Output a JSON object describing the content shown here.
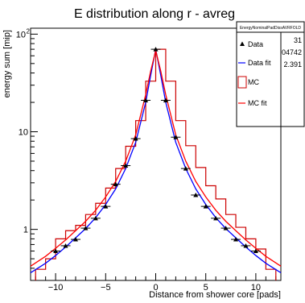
{
  "chart_data": {
    "type": "line",
    "title": "E distribution along r - avreg",
    "xlabel": "Distance from shower core [pads]",
    "ylabel": "energy sum [mip]",
    "xlim": [
      -12.5,
      12.5
    ],
    "ylim": [
      0.3,
      115
    ],
    "y_scale": "log",
    "x_ticks": [
      -10,
      -5,
      0,
      5,
      10
    ],
    "y_ticks": [
      {
        "v": 1,
        "label": "1"
      },
      {
        "v": 10,
        "label": "10"
      },
      {
        "v": 100,
        "label": "10",
        "exp": "2"
      }
    ],
    "grid": false,
    "legend_position": "top-right",
    "stats_box": {
      "title": "EnergyNominalPadDissAVRFOLD",
      "values": [
        "31",
        ".04742",
        "2.391"
      ]
    },
    "legend": [
      {
        "label": "Data",
        "marker": "triangle",
        "color": "#000000"
      },
      {
        "label": "Data fit",
        "marker": "line",
        "color": "#0000ff"
      },
      {
        "label": "MC",
        "marker": "box",
        "color": "#cc0000"
      },
      {
        "label": "MC fit",
        "marker": "line",
        "color": "#ff0000"
      }
    ],
    "series": [
      {
        "name": "Data",
        "kind": "points",
        "color": "#000000",
        "x": [
          -10,
          -9,
          -8,
          -7,
          -6,
          -5,
          -4,
          -3,
          -2,
          -1,
          0,
          1,
          2,
          3,
          4,
          5,
          6,
          7,
          8,
          9,
          10
        ],
        "y": [
          0.6,
          0.68,
          0.79,
          1.03,
          1.3,
          1.72,
          2.9,
          4.5,
          8.5,
          21,
          70,
          21,
          8.8,
          4.2,
          2.25,
          1.72,
          1.3,
          1.03,
          0.79,
          0.68,
          0.6
        ]
      },
      {
        "name": "MC",
        "kind": "histogram",
        "color": "#cc0000",
        "edges": [
          -12,
          -11,
          -10,
          -9,
          -8,
          -7,
          -6,
          -5,
          -4,
          -3,
          -2,
          -1,
          0,
          1,
          2,
          3,
          4,
          5,
          6,
          7,
          8,
          9,
          10,
          11,
          12
        ],
        "values": [
          0.39,
          0.5,
          0.8,
          0.97,
          1.1,
          1.42,
          1.85,
          2.65,
          4.2,
          7.1,
          13,
          33,
          70,
          33,
          13,
          7.2,
          4.3,
          2.8,
          2.05,
          1.42,
          1.05,
          0.8,
          0.63,
          0.39
        ]
      },
      {
        "name": "Data fit",
        "kind": "curve",
        "color": "#0000ff",
        "x": [
          -12.5,
          -11,
          -10,
          -9,
          -8,
          -7,
          -6,
          -5,
          -4,
          -3,
          -2,
          -1,
          -0.5,
          0,
          0.5,
          1,
          2,
          3,
          4,
          5,
          6,
          7,
          8,
          9,
          10,
          11,
          12.5
        ],
        "y": [
          0.36,
          0.45,
          0.54,
          0.66,
          0.82,
          1.02,
          1.32,
          1.8,
          2.6,
          4.2,
          7.8,
          20,
          38,
          70,
          38,
          20,
          7.8,
          4.2,
          2.6,
          1.8,
          1.32,
          1.02,
          0.82,
          0.66,
          0.54,
          0.45,
          0.36
        ]
      },
      {
        "name": "MC fit",
        "kind": "curve",
        "color": "#ff0000",
        "x": [
          -12.5,
          -11,
          -10,
          -9,
          -8,
          -7,
          -6,
          -5,
          -4,
          -3,
          -2,
          -1,
          -0.5,
          0,
          0.5,
          1,
          2,
          3,
          4,
          5,
          6,
          7,
          8,
          9,
          10,
          11,
          12.5
        ],
        "y": [
          0.42,
          0.53,
          0.64,
          0.78,
          0.97,
          1.21,
          1.57,
          2.15,
          3.1,
          5.0,
          9.3,
          24,
          42,
          68,
          42,
          24,
          9.3,
          5.0,
          3.1,
          2.15,
          1.57,
          1.21,
          0.97,
          0.78,
          0.64,
          0.53,
          0.42
        ]
      }
    ]
  }
}
